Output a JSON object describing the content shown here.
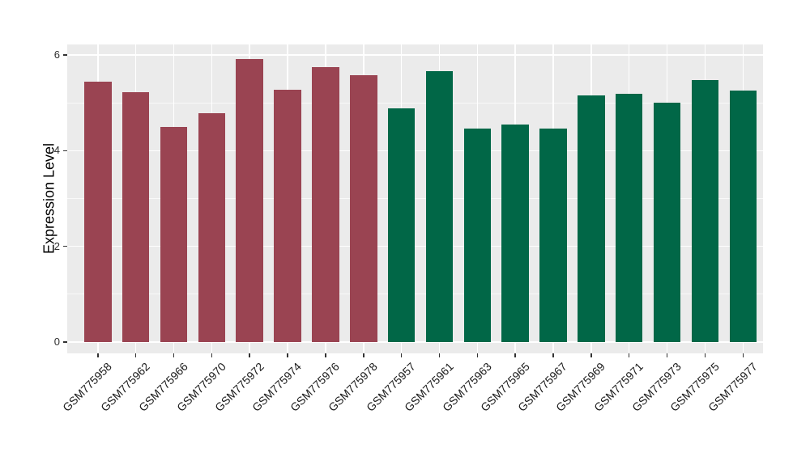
{
  "chart_data": {
    "type": "bar",
    "title": "",
    "xlabel": "",
    "ylabel": "Expression Level",
    "categories": [
      "GSM775958",
      "GSM775962",
      "GSM775966",
      "GSM775970",
      "GSM775972",
      "GSM775974",
      "GSM775976",
      "GSM775978",
      "GSM775957",
      "GSM775961",
      "GSM775963",
      "GSM775965",
      "GSM775967",
      "GSM775969",
      "GSM775971",
      "GSM775973",
      "GSM775975",
      "GSM775977"
    ],
    "values": [
      5.44,
      5.23,
      4.5,
      4.78,
      5.91,
      5.28,
      5.74,
      5.57,
      4.88,
      5.67,
      4.47,
      4.55,
      4.46,
      5.15,
      5.19,
      5.0,
      5.47,
      5.26
    ],
    "bar_groups": [
      "group1",
      "group1",
      "group1",
      "group1",
      "group1",
      "group1",
      "group1",
      "group1",
      "group2",
      "group2",
      "group2",
      "group2",
      "group2",
      "group2",
      "group2",
      "group2",
      "group2",
      "group2"
    ],
    "group_colors": {
      "group1": "#9A4452",
      "group2": "#016747"
    },
    "ylim": [
      0,
      6.2
    ],
    "yticks": [
      0,
      2,
      4,
      6
    ],
    "ytick_labels": [
      "0",
      "2",
      "4",
      "6"
    ],
    "minor_yticks": [
      1,
      3,
      5
    ],
    "x_label_angle": 45,
    "legend": "none",
    "grid": "on",
    "panel_background": "#EBEBEB",
    "gridline_color": "#FFFFFF",
    "axis_text_color": "#303030",
    "figure_background": "#FFFFFF"
  }
}
